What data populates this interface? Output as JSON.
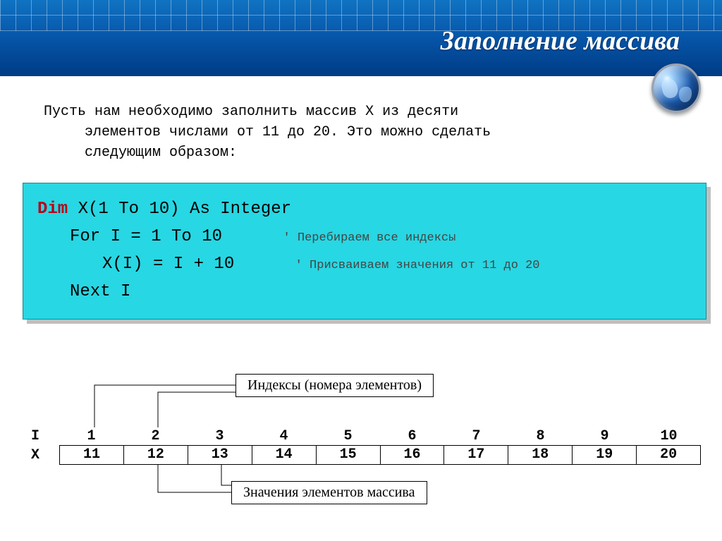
{
  "title": "Заполнение массива",
  "intro": {
    "line1": "Пусть нам необходимо заполнить массив X из десяти",
    "line2": "элементов числами от 11 до 20. Это можно сделать",
    "line3": "следующим образом:"
  },
  "code": {
    "keyword": "Dim",
    "decl_rest": " X(1 To 10) As Integer",
    "for_line": "For I = 1 To 10",
    "for_comment": "' Перебираем все индексы",
    "assign": "X(I) = I + 10",
    "assign_comment": "' Присваиваем значения от 11 до 20",
    "next_line": "Next I"
  },
  "diagram": {
    "top_callout": "Индексы (номера элементов)",
    "bottom_callout": "Значения элементов массива",
    "index_label": "I",
    "value_label": "X",
    "indices": [
      "1",
      "2",
      "3",
      "4",
      "5",
      "6",
      "7",
      "8",
      "9",
      "10"
    ],
    "values": [
      "11",
      "12",
      "13",
      "14",
      "15",
      "16",
      "17",
      "18",
      "19",
      "20"
    ]
  },
  "colors": {
    "header_grad_top": "#1073c2",
    "header_grad_bottom": "#003b85",
    "code_bg": "#27d7e3",
    "code_shadow": "#bfbfbf",
    "keyword": "#b80019"
  }
}
